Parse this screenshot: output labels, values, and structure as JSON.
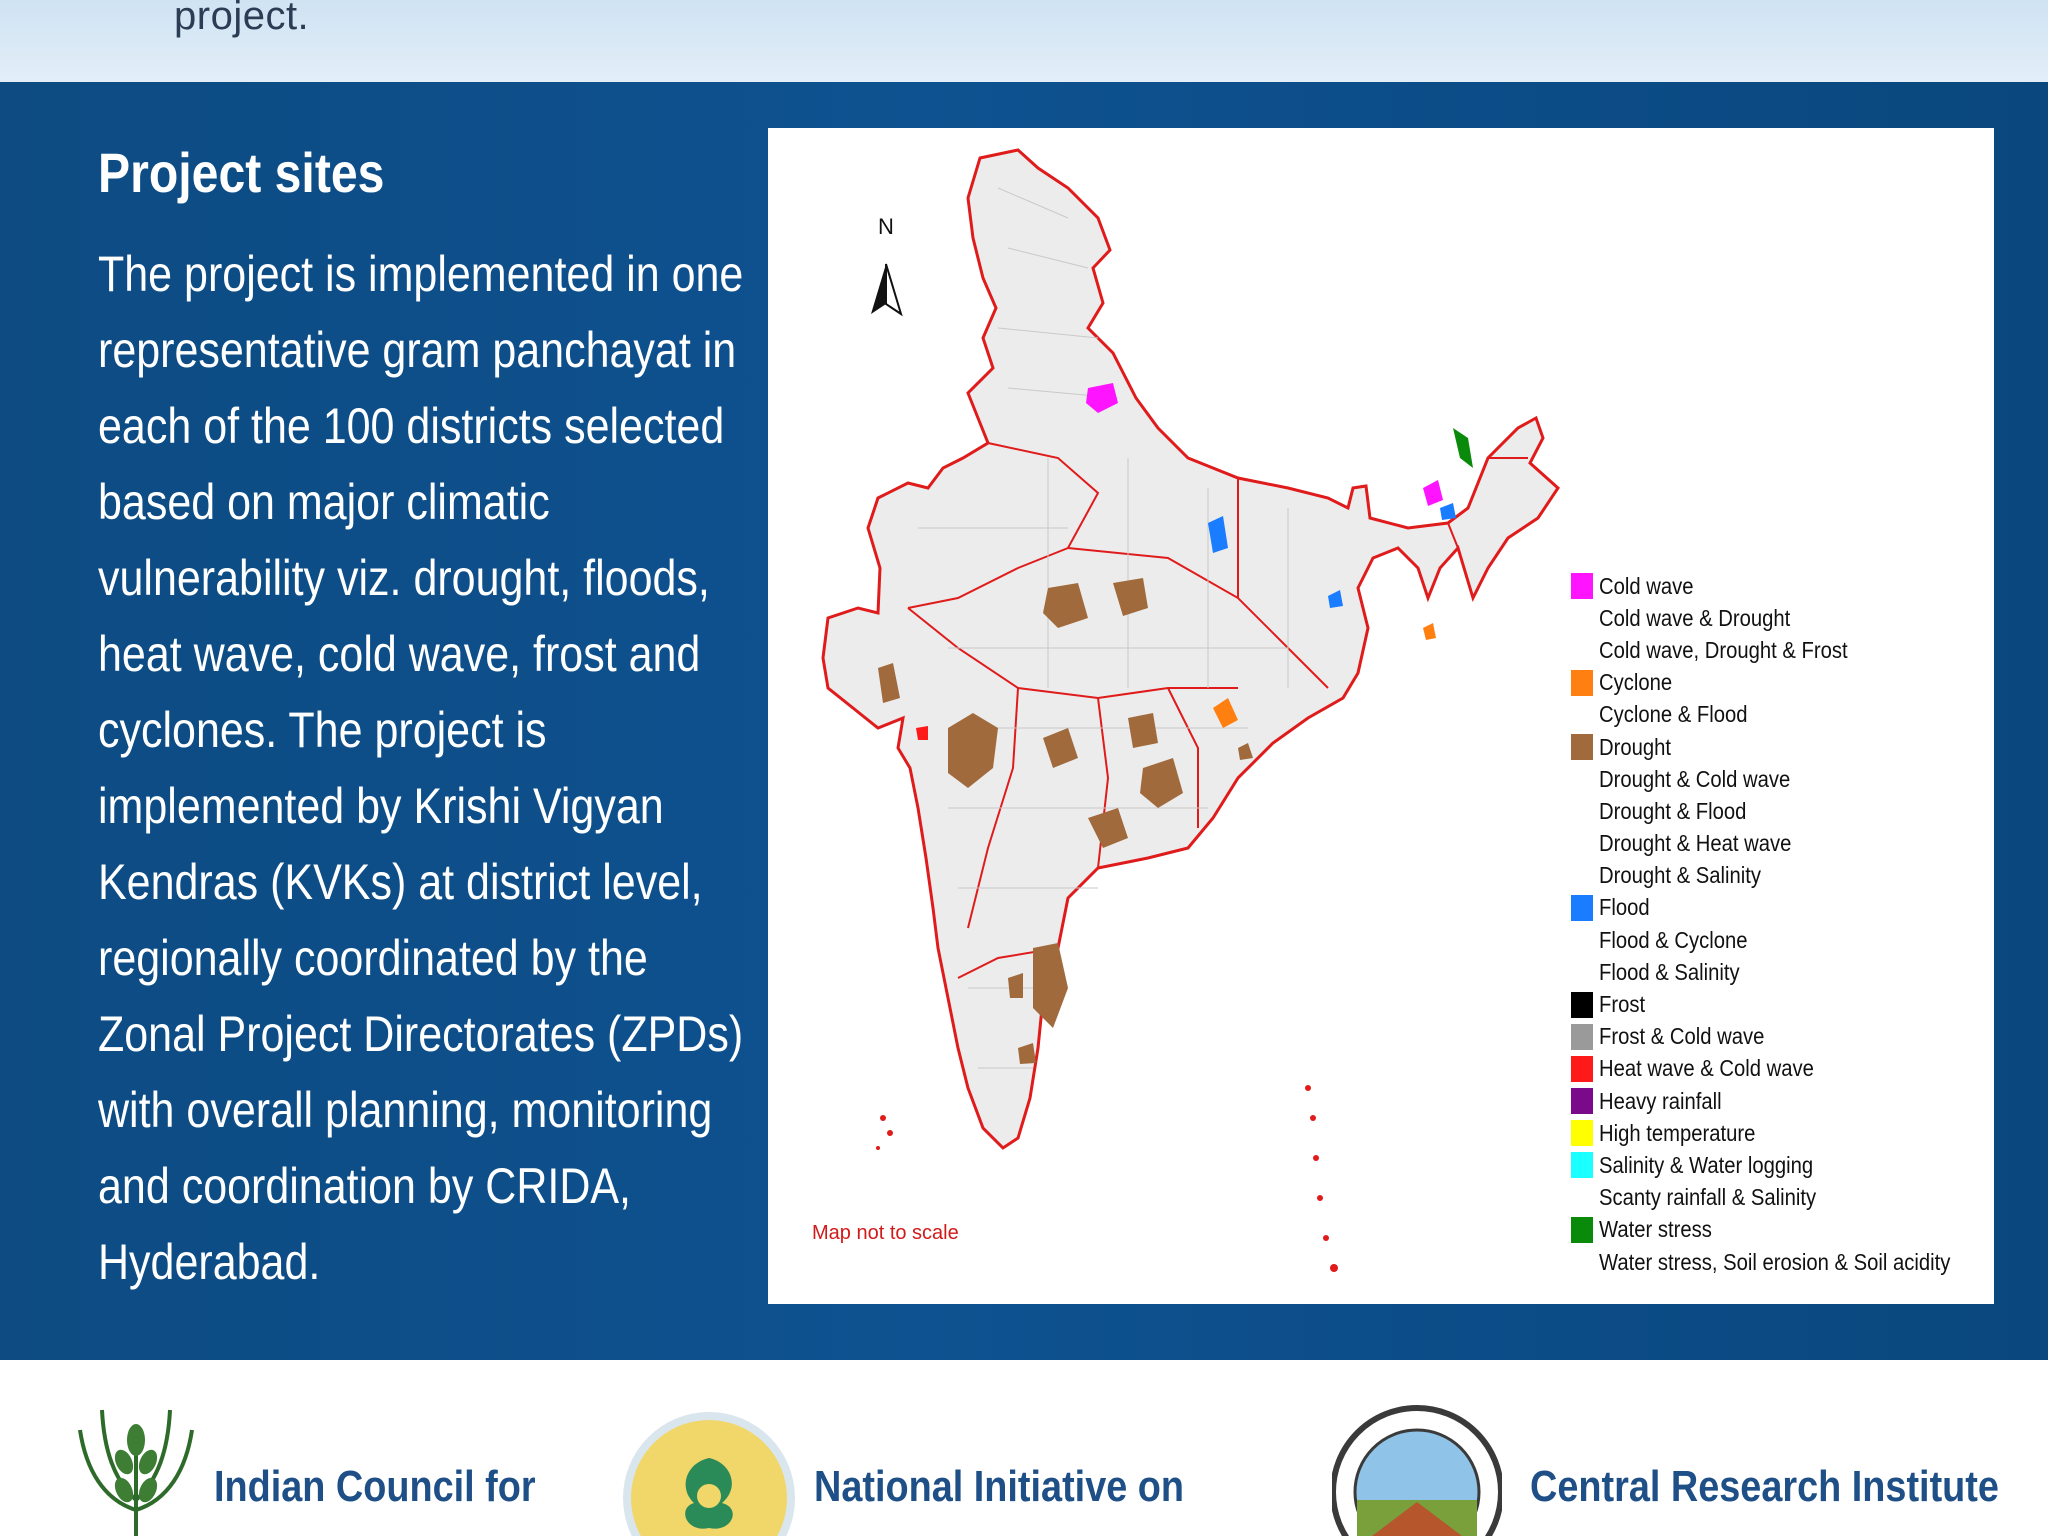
{
  "header": {
    "text": "project."
  },
  "section": {
    "title": "Project sites",
    "body_lines": [
      "The project is implemented in one",
      "representative gram panchayat in",
      "each of the 100 districts selected",
      "based on major climatic",
      "vulnerability viz. drought, floods,",
      "heat wave, cold wave, frost and",
      "cyclones. The project is",
      "implemented by Krishi Vigyan",
      "Kendras (KVKs) at district level,",
      "regionally coordinated by the",
      "Zonal Project Directorates (ZPDs)",
      "with overall planning, monitoring",
      "and coordination by CRIDA,",
      "Hyderabad."
    ]
  },
  "map": {
    "north_label": "N",
    "note": "Map not to scale",
    "legend": [
      {
        "label": "Cold wave",
        "color": "#ff14ff"
      },
      {
        "label": "Cold wave & Drought",
        "color": ""
      },
      {
        "label": "Cold wave, Drought & Frost",
        "color": ""
      },
      {
        "label": "Cyclone",
        "color": "#ff7f10"
      },
      {
        "label": "Cyclone & Flood",
        "color": ""
      },
      {
        "label": "Drought",
        "color": "#a06a3c"
      },
      {
        "label": "Drought &  Cold wave",
        "color": ""
      },
      {
        "label": "Drought & Flood",
        "color": ""
      },
      {
        "label": "Drought & Heat wave",
        "color": ""
      },
      {
        "label": "Drought & Salinity",
        "color": ""
      },
      {
        "label": "Flood",
        "color": "#1a7cff"
      },
      {
        "label": "Flood & Cyclone",
        "color": ""
      },
      {
        "label": "Flood & Salinity",
        "color": ""
      },
      {
        "label": "Frost",
        "color": "#000000"
      },
      {
        "label": "Frost & Cold wave",
        "color": "#9a9a9a"
      },
      {
        "label": "Heat wave & Cold wave",
        "color": "#ff1a1a"
      },
      {
        "label": "Heavy rainfall",
        "color": "#7a0a8a"
      },
      {
        "label": "High temperature",
        "color": "#ffff00"
      },
      {
        "label": "Salinity & Water logging",
        "color": "#1affff"
      },
      {
        "label": "Scanty rainfall & Salinity",
        "color": ""
      },
      {
        "label": "Water stress",
        "color": "#0a8a0a"
      },
      {
        "label": "Water stress, Soil erosion & Soil acidity",
        "color": ""
      }
    ]
  },
  "footer": {
    "logos": [
      {
        "text": "Indian Council for",
        "icon": "icar-wheat-logo-icon"
      },
      {
        "text": "National Initiative on",
        "icon": "nicra-logo-icon"
      },
      {
        "text": "Central Research Institute",
        "icon": "crida-seal-logo-icon"
      }
    ]
  },
  "colors": {
    "band": "#0e5291",
    "header_band": "#d8e8f5",
    "footer_text": "#1e4f86",
    "map_border": "#e01b1b",
    "district_fill": "#ececec"
  }
}
